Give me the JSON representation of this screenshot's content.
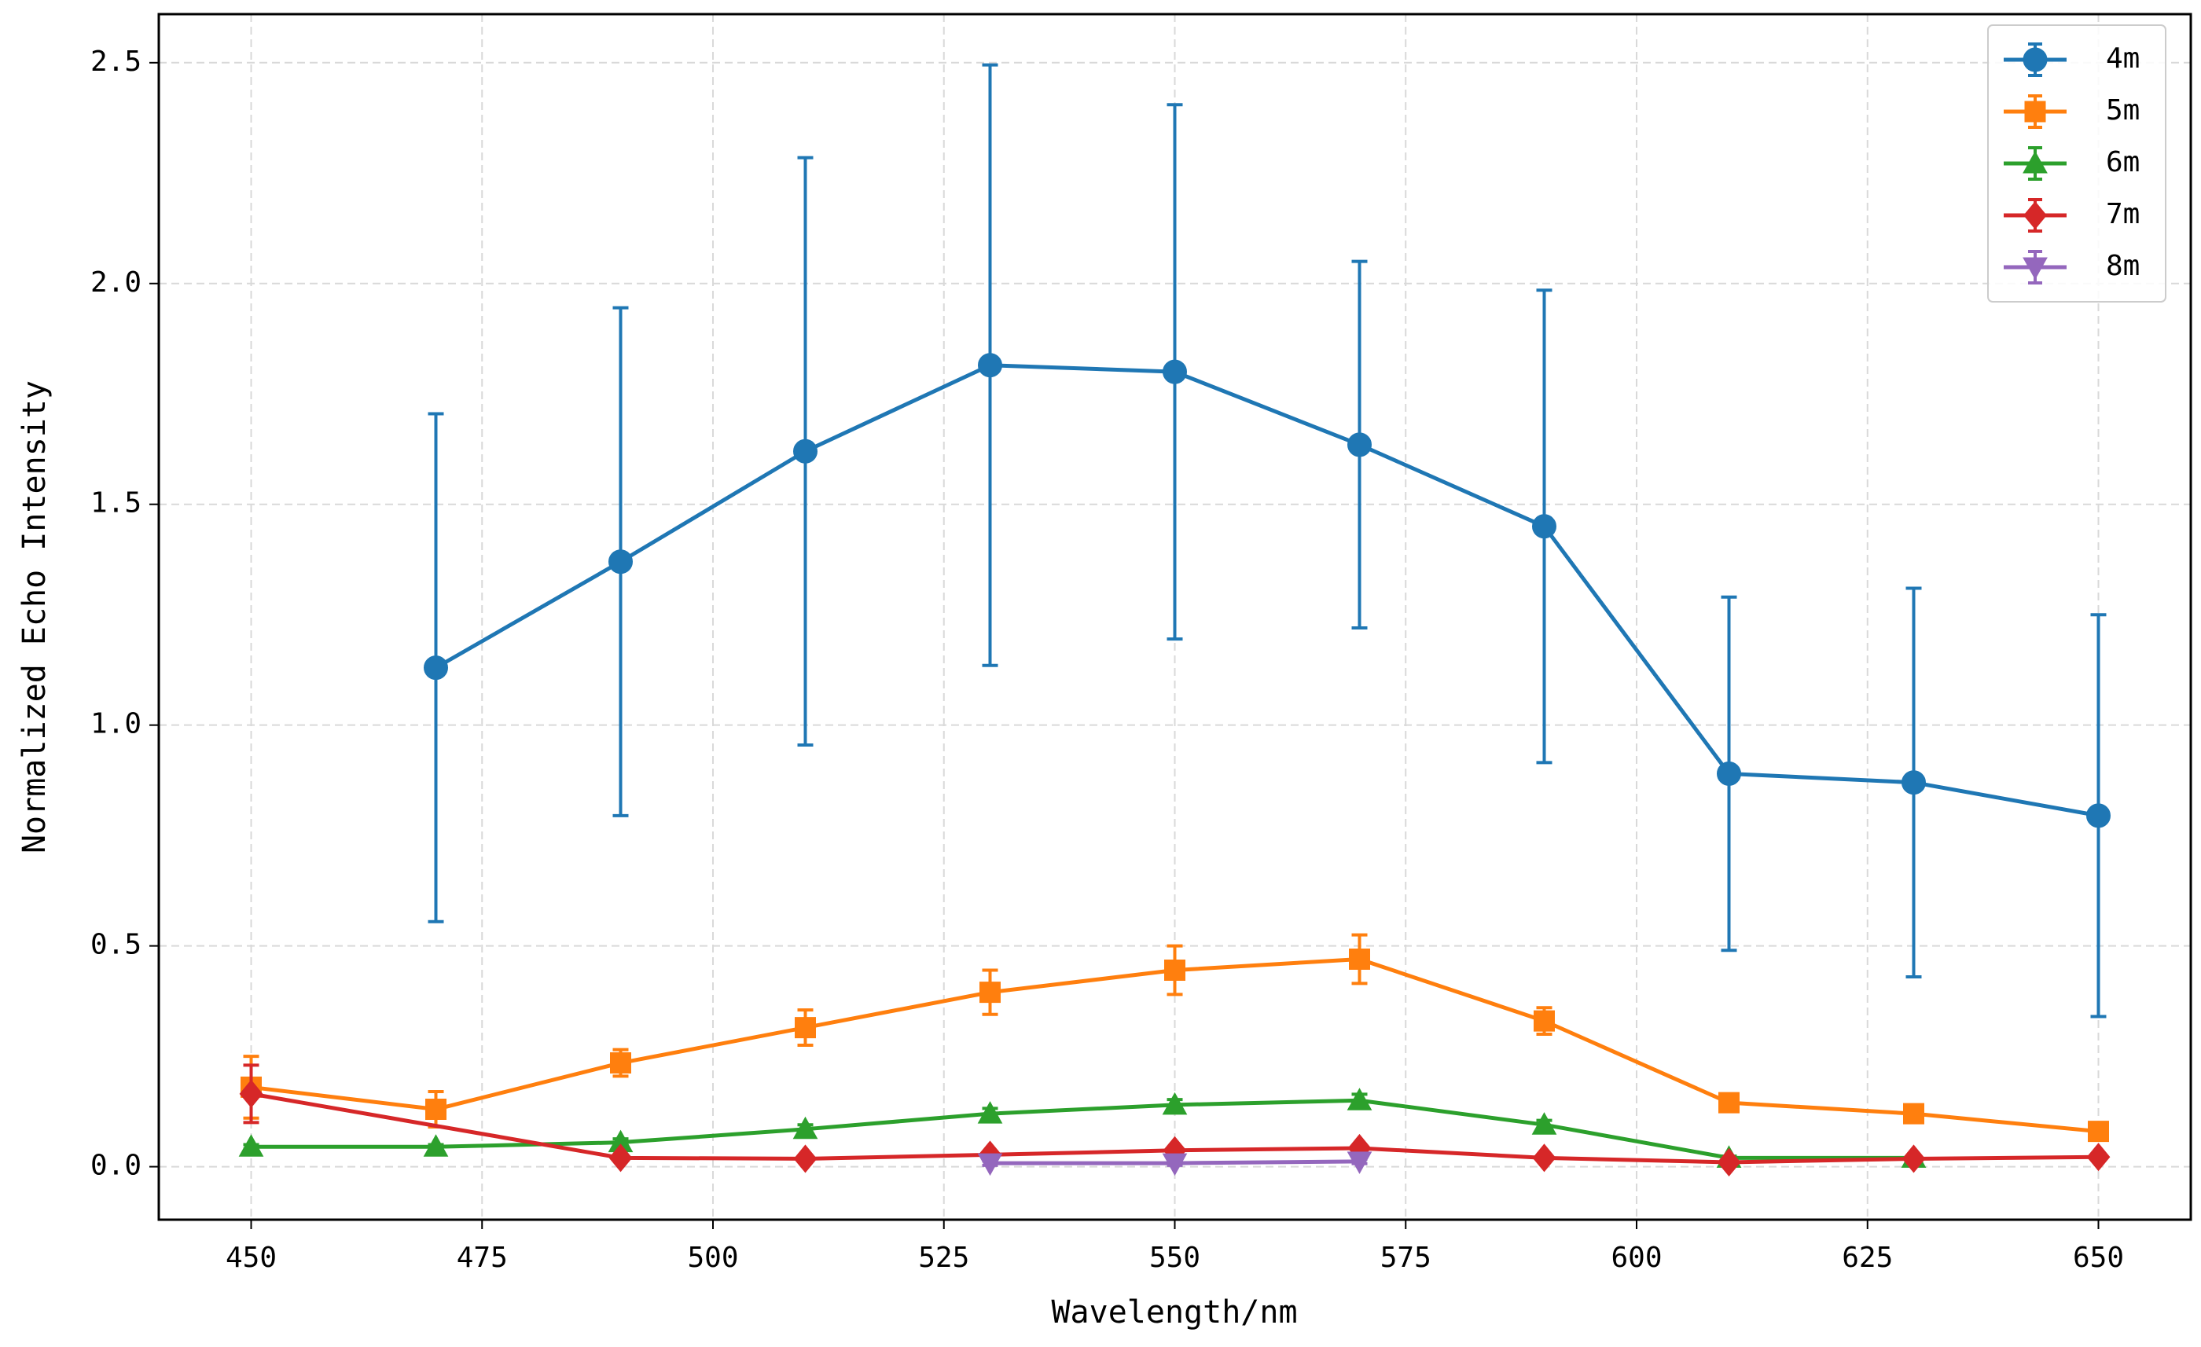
{
  "chart_data": {
    "type": "line",
    "xlabel": "Wavelength/nm",
    "ylabel": "Normalized Echo Intensity",
    "xlim": [
      440,
      660
    ],
    "ylim": [
      -0.12,
      2.61
    ],
    "xticks": [
      450,
      475,
      500,
      525,
      550,
      575,
      600,
      625,
      650
    ],
    "yticks": [
      {
        "value": 0,
        "label": "0.0"
      },
      0.5,
      {
        "value": 1,
        "label": "1.0"
      },
      1.5,
      {
        "value": 2,
        "label": "2.0"
      },
      2.5
    ],
    "grid": true,
    "legend": "upper right",
    "series": [
      {
        "name": "4m",
        "color": "#1f77b4",
        "marker": "circle",
        "x": [
          470,
          490,
          510,
          530,
          550,
          570,
          590,
          610,
          630,
          650
        ],
        "values": [
          1.13,
          1.37,
          1.62,
          1.815,
          1.8,
          1.635,
          1.45,
          0.89,
          0.87,
          0.795
        ],
        "errors": [
          0.575,
          0.575,
          0.665,
          0.68,
          0.605,
          0.415,
          0.535,
          0.4,
          0.44,
          0.455
        ]
      },
      {
        "name": "5m",
        "color": "#ff7f0e",
        "marker": "square",
        "x": [
          450,
          470,
          490,
          510,
          530,
          550,
          570,
          590,
          610,
          630,
          650
        ],
        "values": [
          0.18,
          0.13,
          0.235,
          0.315,
          0.395,
          0.445,
          0.47,
          0.33,
          0.145,
          0.12,
          0.08
        ],
        "errors": [
          0.07,
          0.04,
          0.03,
          0.04,
          0.05,
          0.055,
          0.055,
          0.03,
          0.01,
          0.01,
          0.01
        ]
      },
      {
        "name": "6m",
        "color": "#2ca02c",
        "marker": "triangle-up",
        "x": [
          450,
          470,
          490,
          510,
          530,
          550,
          570,
          590,
          610,
          630
        ],
        "values": [
          0.045,
          0.045,
          0.055,
          0.085,
          0.12,
          0.14,
          0.15,
          0.095,
          0.02,
          0.02
        ],
        "errors": [
          0.005,
          0.005,
          0.008,
          0.01,
          0.012,
          0.012,
          0.014,
          0.01,
          0.004,
          0.004
        ]
      },
      {
        "name": "7m",
        "color": "#d62728",
        "marker": "diamond",
        "x": [
          450,
          490,
          510,
          530,
          550,
          570,
          590,
          610,
          630,
          650
        ],
        "values": [
          0.165,
          0.02,
          0.018,
          0.027,
          0.037,
          0.042,
          0.02,
          0.01,
          0.018,
          0.022
        ],
        "errors": [
          0.065,
          0.004,
          0.004,
          0.005,
          0.006,
          0.006,
          0.004,
          0.003,
          0.003,
          0.004
        ]
      },
      {
        "name": "8m",
        "color": "#9467bd",
        "marker": "triangle-down",
        "x": [
          530,
          550,
          570
        ],
        "values": [
          0.008,
          0.008,
          0.012
        ],
        "errors": [
          0.005,
          0.005,
          0.005
        ]
      }
    ]
  }
}
